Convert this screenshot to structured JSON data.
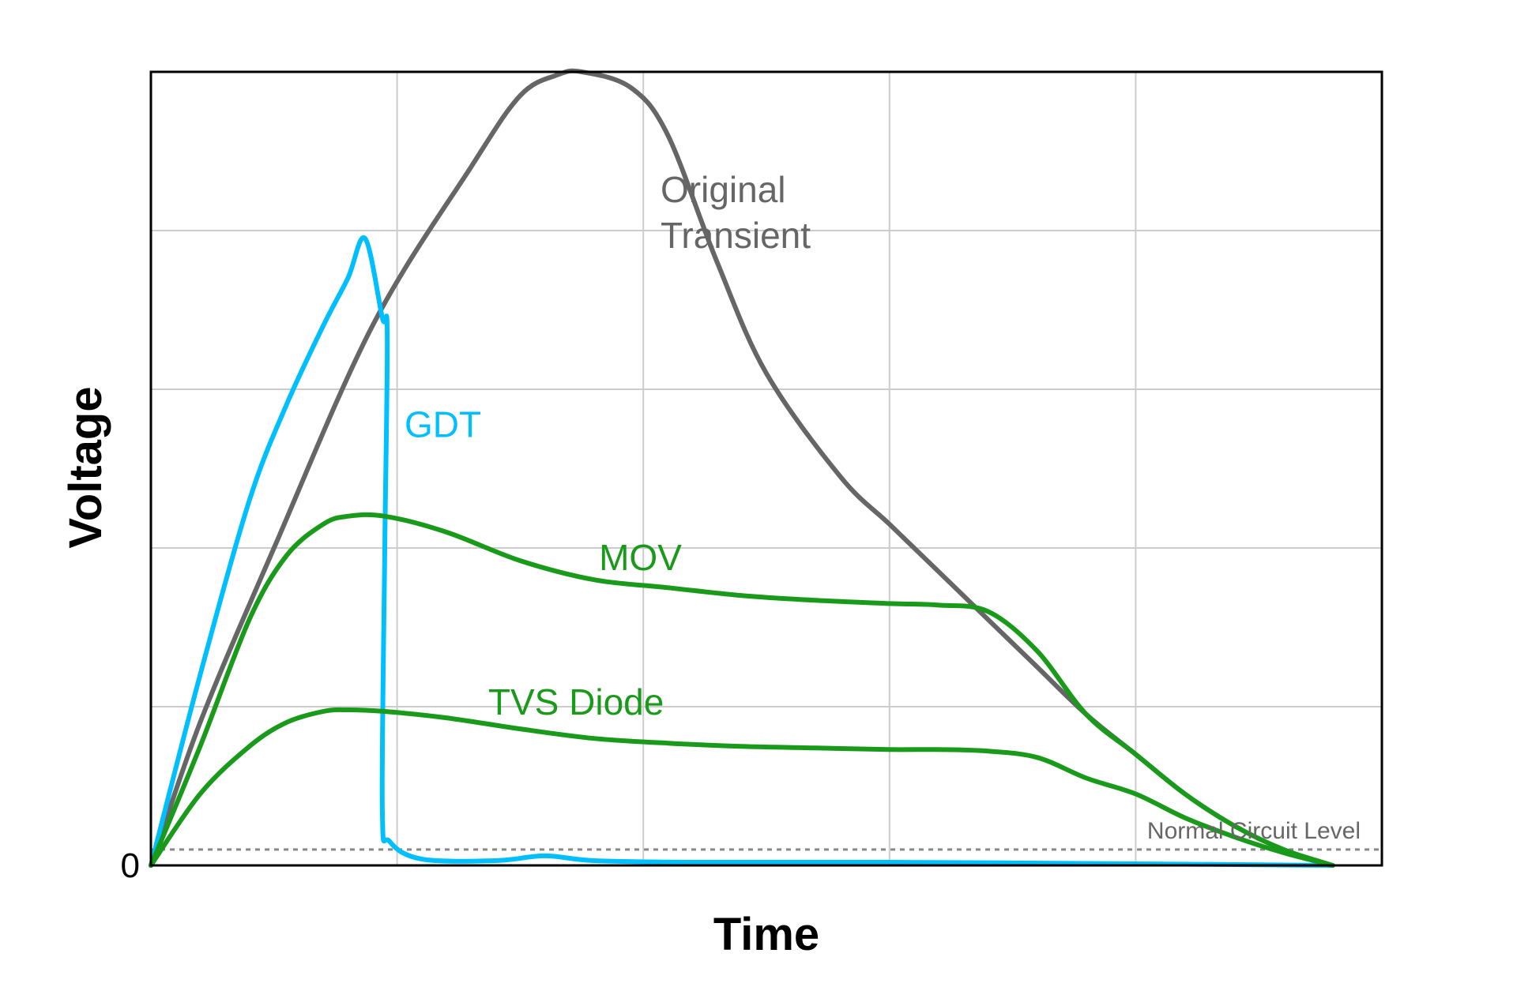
{
  "chart_data": {
    "type": "line",
    "title": "",
    "xlabel": "Time",
    "ylabel": "Voltage",
    "xlim": [
      0,
      5
    ],
    "ylim": [
      0,
      5
    ],
    "grid": true,
    "y_tick_labels": [
      {
        "value": 0,
        "label": "0"
      }
    ],
    "reference_line": {
      "label": "Normal Circuit Level",
      "value": 0.1,
      "color": "#888888",
      "style": "dotted"
    },
    "series": [
      {
        "name": "Original Transient",
        "color": "#666666",
        "x": [
          0,
          0.2,
          0.5,
          0.9,
          1.3,
          1.5,
          1.65,
          1.75,
          1.95,
          2.1,
          2.3,
          2.5,
          2.8,
          3.0,
          3.2,
          3.4,
          3.6,
          3.8,
          4.0,
          4.2,
          4.4,
          4.6,
          4.8
        ],
        "y": [
          0,
          0.9,
          2.0,
          3.4,
          4.4,
          4.85,
          4.98,
          5.0,
          4.9,
          4.6,
          3.8,
          3.1,
          2.45,
          2.15,
          1.85,
          1.55,
          1.25,
          0.95,
          0.7,
          0.45,
          0.25,
          0.1,
          0
        ]
      },
      {
        "name": "GDT",
        "color": "#00BFFF",
        "x": [
          0,
          0.2,
          0.4,
          0.55,
          0.7,
          0.8,
          0.87,
          0.94,
          0.96,
          0.95,
          0.94,
          0.97,
          1.1,
          1.4,
          1.6,
          1.8,
          2.2,
          3.0,
          4.0,
          4.8
        ],
        "y": [
          0,
          1.2,
          2.3,
          2.9,
          3.4,
          3.7,
          3.95,
          3.45,
          3.35,
          2.0,
          0.35,
          0.15,
          0.04,
          0.03,
          0.06,
          0.03,
          0.02,
          0.02,
          0.01,
          0
        ]
      },
      {
        "name": "MOV",
        "color": "#1A9A1A",
        "x": [
          0,
          0.2,
          0.4,
          0.55,
          0.7,
          0.8,
          0.95,
          1.2,
          1.5,
          1.8,
          2.1,
          2.4,
          2.7,
          3.0,
          3.2,
          3.4,
          3.6,
          3.8,
          4.0,
          4.2,
          4.4,
          4.6,
          4.8
        ],
        "y": [
          0,
          0.75,
          1.55,
          1.95,
          2.15,
          2.2,
          2.2,
          2.1,
          1.92,
          1.8,
          1.75,
          1.7,
          1.67,
          1.65,
          1.64,
          1.6,
          1.35,
          0.95,
          0.7,
          0.45,
          0.25,
          0.1,
          0
        ]
      },
      {
        "name": "TVS Diode",
        "color": "#1A9A1A",
        "x": [
          0,
          0.2,
          0.4,
          0.55,
          0.7,
          0.8,
          0.95,
          1.2,
          1.5,
          1.8,
          2.1,
          2.4,
          2.7,
          3.0,
          3.2,
          3.4,
          3.6,
          3.8,
          4.0,
          4.2,
          4.4,
          4.6,
          4.8
        ],
        "y": [
          0,
          0.45,
          0.75,
          0.9,
          0.97,
          0.98,
          0.97,
          0.93,
          0.86,
          0.8,
          0.77,
          0.75,
          0.74,
          0.73,
          0.73,
          0.72,
          0.68,
          0.55,
          0.45,
          0.3,
          0.18,
          0.08,
          0
        ]
      }
    ]
  }
}
